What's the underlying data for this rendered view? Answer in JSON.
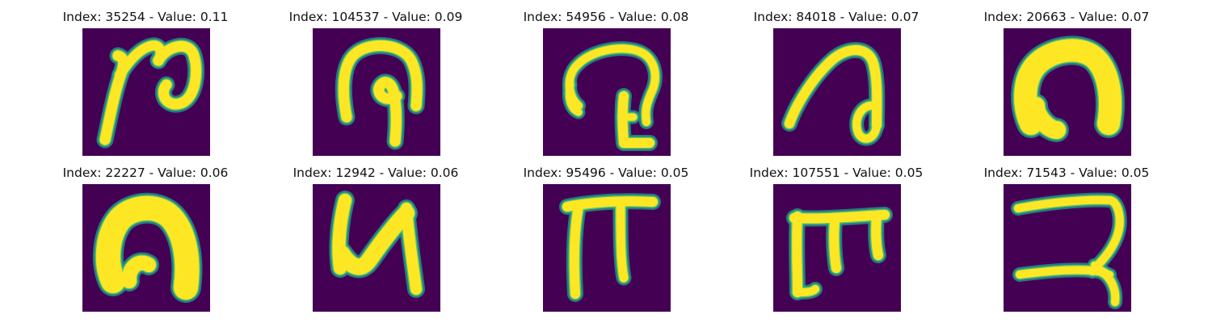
{
  "colors": {
    "background": "#440154",
    "stroke_edge": "#21918c",
    "stroke_mid": "#5ec962",
    "stroke_core": "#fde725"
  },
  "panels": [
    {
      "title": "Index: 35254 - Value: 0.11",
      "glyph": "hook-loop-right"
    },
    {
      "title": "Index: 104537 - Value: 0.09",
      "glyph": "arch-with-inner-hook"
    },
    {
      "title": "Index: 54956 - Value: 0.08",
      "glyph": "arch-with-base-step"
    },
    {
      "title": "Index: 84018 - Value: 0.07",
      "glyph": "slant-arch-loop"
    },
    {
      "title": "Index: 20663 - Value: 0.07",
      "glyph": "thick-arch"
    },
    {
      "title": "Index: 22227 - Value: 0.06",
      "glyph": "thick-arch-hook"
    },
    {
      "title": "Index: 12942 - Value: 0.06",
      "glyph": "zigzag-n"
    },
    {
      "title": "Index: 95496 - Value: 0.05",
      "glyph": "pi-shape"
    },
    {
      "title": "Index: 107551 - Value: 0.05",
      "glyph": "e-comb"
    },
    {
      "title": "Index: 71543 - Value: 0.05",
      "glyph": "reversed-s-curve"
    }
  ]
}
